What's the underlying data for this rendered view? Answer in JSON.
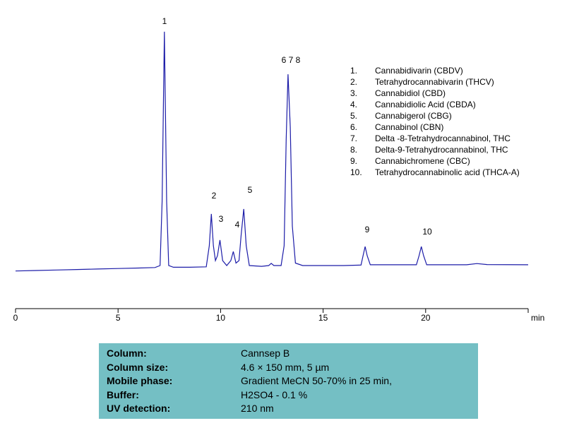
{
  "chart_data": {
    "type": "line",
    "x_label": "min",
    "xlim": [
      0,
      25
    ],
    "xticks": [
      0,
      5,
      10,
      15,
      20
    ],
    "ylim": [
      0,
      100
    ],
    "series": [
      {
        "color": "#1c1ca8",
        "x": [
          0,
          1,
          2,
          3,
          4,
          5,
          6,
          6.8,
          7.05,
          7.15,
          7.26,
          7.37,
          7.47,
          7.7,
          8.5,
          9.3,
          9.45,
          9.55,
          9.65,
          9.75,
          9.85,
          9.97,
          10.1,
          10.3,
          10.5,
          10.62,
          10.75,
          10.9,
          11.0,
          11.13,
          11.25,
          11.4,
          12.0,
          12.35,
          12.47,
          12.6,
          12.95,
          13.1,
          13.2,
          13.29,
          13.4,
          13.5,
          13.65,
          14,
          16,
          16.85,
          16.95,
          17.05,
          17.15,
          17.3,
          19.55,
          19.68,
          19.79,
          19.9,
          20.05,
          22,
          22.5,
          23,
          25
        ],
        "values": [
          1.8,
          2.0,
          2.2,
          2.4,
          2.6,
          2.8,
          3.0,
          3.2,
          4,
          30,
          98.6,
          30,
          4,
          3.3,
          3.3,
          3.5,
          12,
          24.9,
          12,
          6,
          8,
          14.3,
          6,
          4,
          6,
          9.7,
          5,
          6,
          16,
          26.9,
          12,
          4,
          3.7,
          4,
          4.9,
          4,
          4,
          12,
          55,
          81.4,
          60,
          20,
          5,
          4,
          4,
          4.2,
          8,
          11.7,
          8,
          4.3,
          4.3,
          8,
          11.7,
          8,
          4.3,
          4.3,
          4.8,
          4.4,
          4.3
        ]
      }
    ],
    "peak_labels": [
      "1",
      "2",
      "3",
      "4",
      "5",
      "6 7 8",
      "9",
      "10"
    ],
    "legend_items": [
      {
        "number": "1.",
        "name": "Cannabidivarin (CBDV)"
      },
      {
        "number": "2.",
        "name": "Tetrahydrocannabivarin (THCV)"
      },
      {
        "number": "3.",
        "name": "Cannabidiol (CBD)"
      },
      {
        "number": "4.",
        "name": "Cannabidiolic Acid (CBDA)"
      },
      {
        "number": "5.",
        "name": "Cannabigerol (CBG)"
      },
      {
        "number": "6.",
        "name": "Cannabinol (CBN)"
      },
      {
        "number": "7.",
        "name": "Delta -8-Tetrahydrocannabinol, THC"
      },
      {
        "number": "8.",
        "name": "Delta-9-Tetrahydrocannabinol, THC"
      },
      {
        "number": "9.",
        "name": "Cannabichromene (CBC)"
      },
      {
        "number": "10.",
        "name": "Tetrahydrocannabinolic acid (THCA-A)"
      }
    ]
  },
  "conditions": [
    [
      "Column:",
      "Cannsep B"
    ],
    [
      "Column size:",
      "4.6 × 150 mm, 5 µm"
    ],
    [
      "Mobile phase:",
      "Gradient MeCN 50-70% in 25 min,"
    ],
    [
      "Buffer:",
      "H2SO4 - 0.1 %"
    ],
    [
      "UV detection:",
      "210 nm"
    ]
  ]
}
